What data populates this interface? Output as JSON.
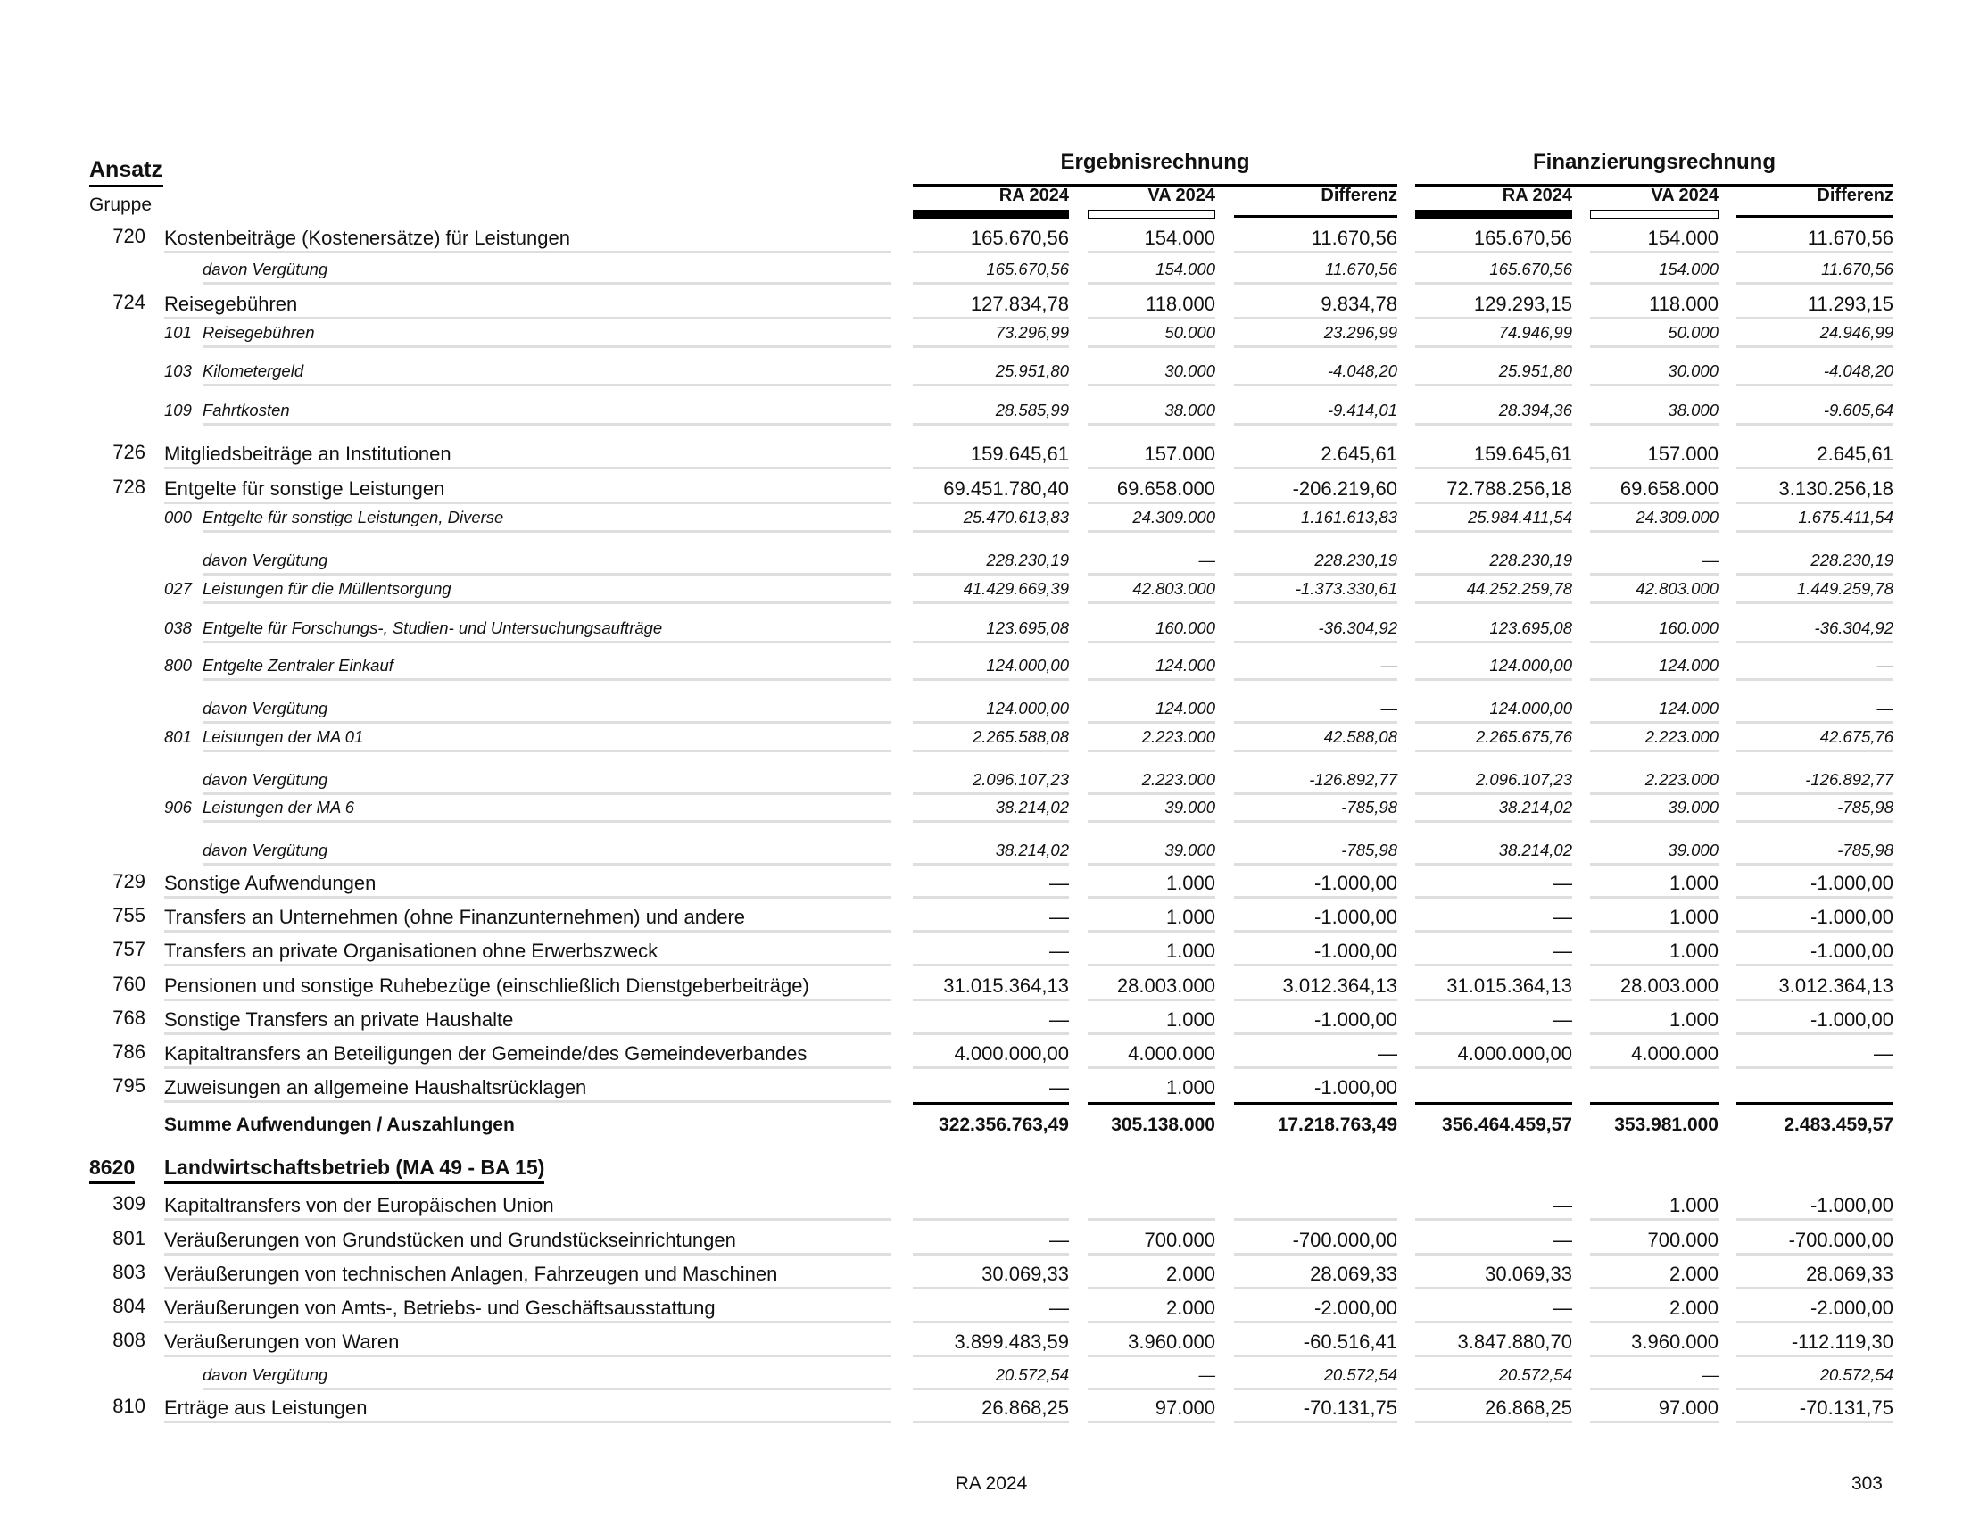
{
  "header": {
    "ansatz": "Ansatz",
    "gruppe": "Gruppe",
    "groups": [
      "Ergebnisrechnung",
      "Finanzierungsrechnung"
    ],
    "columns": [
      "RA 2024",
      "VA 2024",
      "Differenz",
      "RA 2024",
      "VA 2024",
      "Differenz"
    ]
  },
  "rows": [
    {
      "type": "main",
      "code": "720",
      "label": "Kostenbeiträge (Kostenersätze) für Leistungen",
      "values": [
        "165.670,56",
        "154.000",
        "11.670,56",
        "165.670,56",
        "154.000",
        "11.670,56"
      ]
    },
    {
      "type": "davon",
      "code": "",
      "label": "davon Vergütung",
      "values": [
        "165.670,56",
        "154.000",
        "11.670,56",
        "165.670,56",
        "154.000",
        "11.670,56"
      ]
    },
    {
      "type": "main",
      "code": "724",
      "label": "Reisegebühren",
      "values": [
        "127.834,78",
        "118.000",
        "9.834,78",
        "129.293,15",
        "118.000",
        "11.293,15"
      ]
    },
    {
      "type": "sub",
      "code": "101",
      "label": "Reisegebühren",
      "values": [
        "73.296,99",
        "50.000",
        "23.296,99",
        "74.946,99",
        "50.000",
        "24.946,99"
      ]
    },
    {
      "type": "sub",
      "code": "103",
      "label": "Kilometergeld",
      "values": [
        "25.951,80",
        "30.000",
        "-4.048,20",
        "25.951,80",
        "30.000",
        "-4.048,20"
      ]
    },
    {
      "type": "sub",
      "code": "109",
      "label": "Fahrtkosten",
      "values": [
        "28.585,99",
        "38.000",
        "-9.414,01",
        "28.394,36",
        "38.000",
        "-9.605,64"
      ]
    },
    {
      "type": "main",
      "code": "726",
      "label": "Mitgliedsbeiträge an Institutionen",
      "values": [
        "159.645,61",
        "157.000",
        "2.645,61",
        "159.645,61",
        "157.000",
        "2.645,61"
      ]
    },
    {
      "type": "main",
      "code": "728",
      "label": "Entgelte für sonstige Leistungen",
      "values": [
        "69.451.780,40",
        "69.658.000",
        "-206.219,60",
        "72.788.256,18",
        "69.658.000",
        "3.130.256,18"
      ]
    },
    {
      "type": "sub",
      "code": "000",
      "label": "Entgelte für sonstige Leistungen, Diverse",
      "values": [
        "25.470.613,83",
        "24.309.000",
        "1.161.613,83",
        "25.984.411,54",
        "24.309.000",
        "1.675.411,54"
      ]
    },
    {
      "type": "davon",
      "code": "",
      "label": "davon Vergütung",
      "values": [
        "228.230,19",
        "—",
        "228.230,19",
        "228.230,19",
        "—",
        "228.230,19"
      ]
    },
    {
      "type": "sub",
      "code": "027",
      "label": "Leistungen für die Müllentsorgung",
      "values": [
        "41.429.669,39",
        "42.803.000",
        "-1.373.330,61",
        "44.252.259,78",
        "42.803.000",
        "1.449.259,78"
      ]
    },
    {
      "type": "sub",
      "code": "038",
      "label": "Entgelte für Forschungs-, Studien- und Untersuchungsaufträge",
      "values": [
        "123.695,08",
        "160.000",
        "-36.304,92",
        "123.695,08",
        "160.000",
        "-36.304,92"
      ]
    },
    {
      "type": "sub",
      "code": "800",
      "label": "Entgelte Zentraler Einkauf",
      "values": [
        "124.000,00",
        "124.000",
        "—",
        "124.000,00",
        "124.000",
        "—"
      ]
    },
    {
      "type": "davon",
      "code": "",
      "label": "davon Vergütung",
      "values": [
        "124.000,00",
        "124.000",
        "—",
        "124.000,00",
        "124.000",
        "—"
      ]
    },
    {
      "type": "sub",
      "code": "801",
      "label": "Leistungen der MA 01",
      "values": [
        "2.265.588,08",
        "2.223.000",
        "42.588,08",
        "2.265.675,76",
        "2.223.000",
        "42.675,76"
      ]
    },
    {
      "type": "davon",
      "code": "",
      "label": "davon Vergütung",
      "values": [
        "2.096.107,23",
        "2.223.000",
        "-126.892,77",
        "2.096.107,23",
        "2.223.000",
        "-126.892,77"
      ]
    },
    {
      "type": "sub",
      "code": "906",
      "label": "Leistungen der MA 6",
      "values": [
        "38.214,02",
        "39.000",
        "-785,98",
        "38.214,02",
        "39.000",
        "-785,98"
      ]
    },
    {
      "type": "davon",
      "code": "",
      "label": "davon Vergütung",
      "values": [
        "38.214,02",
        "39.000",
        "-785,98",
        "38.214,02",
        "39.000",
        "-785,98"
      ]
    },
    {
      "type": "main",
      "code": "729",
      "label": "Sonstige Aufwendungen",
      "values": [
        "—",
        "1.000",
        "-1.000,00",
        "—",
        "1.000",
        "-1.000,00"
      ]
    },
    {
      "type": "main",
      "code": "755",
      "label": "Transfers an Unternehmen (ohne Finanzunternehmen) und andere",
      "values": [
        "—",
        "1.000",
        "-1.000,00",
        "—",
        "1.000",
        "-1.000,00"
      ]
    },
    {
      "type": "main",
      "code": "757",
      "label": "Transfers an private Organisationen ohne Erwerbszweck",
      "values": [
        "—",
        "1.000",
        "-1.000,00",
        "—",
        "1.000",
        "-1.000,00"
      ]
    },
    {
      "type": "main",
      "code": "760",
      "label": "Pensionen und sonstige Ruhebezüge (einschließlich Dienstgeberbeiträge)",
      "values": [
        "31.015.364,13",
        "28.003.000",
        "3.012.364,13",
        "31.015.364,13",
        "28.003.000",
        "3.012.364,13"
      ]
    },
    {
      "type": "main",
      "code": "768",
      "label": "Sonstige Transfers an private Haushalte",
      "values": [
        "—",
        "1.000",
        "-1.000,00",
        "—",
        "1.000",
        "-1.000,00"
      ]
    },
    {
      "type": "main",
      "code": "786",
      "label": "Kapitaltransfers an Beteiligungen der Gemeinde/des Gemeindeverbandes",
      "values": [
        "4.000.000,00",
        "4.000.000",
        "—",
        "4.000.000,00",
        "4.000.000",
        "—"
      ]
    },
    {
      "type": "last",
      "code": "795",
      "label": "Zuweisungen an allgemeine Haushaltsrücklagen",
      "values": [
        "—",
        "1.000",
        "-1.000,00",
        "",
        "",
        ""
      ]
    },
    {
      "type": "sum",
      "code": "",
      "label": "Summe Aufwendungen / Auszahlungen",
      "values": [
        "322.356.763,49",
        "305.138.000",
        "17.218.763,49",
        "356.464.459,57",
        "353.981.000",
        "2.483.459,57"
      ]
    },
    {
      "type": "section",
      "code": "8620",
      "label": "Landwirtschaftsbetrieb (MA 49 - BA 15)",
      "values": [
        "",
        "",
        "",
        "",
        "",
        ""
      ]
    },
    {
      "type": "main",
      "code": "309",
      "label": "Kapitaltransfers von der Europäischen Union",
      "values": [
        "",
        "",
        "",
        "—",
        "1.000",
        "-1.000,00"
      ]
    },
    {
      "type": "main",
      "code": "801",
      "label": "Veräußerungen von Grundstücken und Grundstückseinrichtungen",
      "values": [
        "—",
        "700.000",
        "-700.000,00",
        "—",
        "700.000",
        "-700.000,00"
      ]
    },
    {
      "type": "main",
      "code": "803",
      "label": "Veräußerungen von technischen Anlagen, Fahrzeugen und Maschinen",
      "values": [
        "30.069,33",
        "2.000",
        "28.069,33",
        "30.069,33",
        "2.000",
        "28.069,33"
      ]
    },
    {
      "type": "main",
      "code": "804",
      "label": "Veräußerungen von Amts-, Betriebs- und Geschäftsausstattung",
      "values": [
        "—",
        "2.000",
        "-2.000,00",
        "—",
        "2.000",
        "-2.000,00"
      ]
    },
    {
      "type": "main",
      "code": "808",
      "label": "Veräußerungen von Waren",
      "values": [
        "3.899.483,59",
        "3.960.000",
        "-60.516,41",
        "3.847.880,70",
        "3.960.000",
        "-112.119,30"
      ]
    },
    {
      "type": "davon",
      "code": "",
      "label": "davon Vergütung",
      "values": [
        "20.572,54",
        "—",
        "20.572,54",
        "20.572,54",
        "—",
        "20.572,54"
      ]
    },
    {
      "type": "main",
      "code": "810",
      "label": "Erträge aus Leistungen",
      "values": [
        "26.868,25",
        "97.000",
        "-70.131,75",
        "26.868,25",
        "97.000",
        "-70.131,75"
      ]
    }
  ],
  "footer": {
    "center": "RA 2024",
    "page": "303"
  }
}
